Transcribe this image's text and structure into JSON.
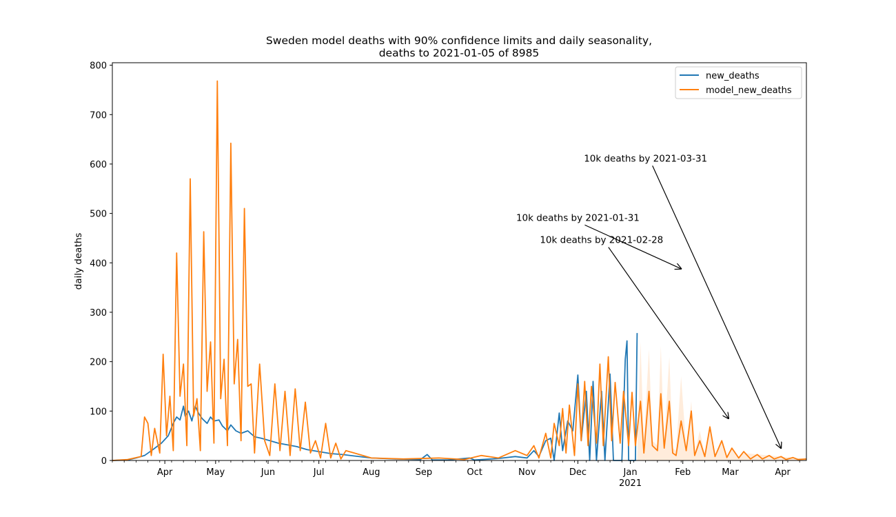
{
  "chart_data": {
    "type": "line",
    "title": "Sweden model deaths with 90% confidence limits and daily seasonality,",
    "subtitle": "deaths to 2021-01-05 of 8985",
    "xlabel": "",
    "ylabel": "daily deaths",
    "x_range": [
      "2020-03-01",
      "2021-04-15"
    ],
    "ylim": [
      0,
      805
    ],
    "yticks": [
      0,
      100,
      200,
      300,
      400,
      500,
      600,
      700,
      800
    ],
    "xticks": [
      {
        "date": "2020-04-01",
        "label": "Apr"
      },
      {
        "date": "2020-05-01",
        "label": "May"
      },
      {
        "date": "2020-06-01",
        "label": "Jun"
      },
      {
        "date": "2020-07-01",
        "label": "Jul"
      },
      {
        "date": "2020-08-01",
        "label": "Aug"
      },
      {
        "date": "2020-09-01",
        "label": "Sep"
      },
      {
        "date": "2020-10-01",
        "label": "Oct"
      },
      {
        "date": "2020-11-01",
        "label": "Nov"
      },
      {
        "date": "2020-12-01",
        "label": "Dec"
      },
      {
        "date": "2021-01-01",
        "label": "Jan"
      },
      {
        "date": "2021-02-01",
        "label": "Feb"
      },
      {
        "date": "2021-03-01",
        "label": "Mar"
      },
      {
        "date": "2021-04-01",
        "label": "Apr"
      }
    ],
    "year_label": {
      "date": "2021-01-01",
      "label": "2021"
    },
    "grid": false,
    "legend_position": "top-right",
    "series": [
      {
        "name": "new_deaths",
        "color": "#1f77b4",
        "points": [
          [
            "2020-03-01",
            0
          ],
          [
            "2020-03-10",
            1
          ],
          [
            "2020-03-15",
            5
          ],
          [
            "2020-03-20",
            10
          ],
          [
            "2020-03-25",
            22
          ],
          [
            "2020-03-30",
            35
          ],
          [
            "2020-04-03",
            50
          ],
          [
            "2020-04-06",
            75
          ],
          [
            "2020-04-08",
            88
          ],
          [
            "2020-04-10",
            82
          ],
          [
            "2020-04-12",
            110
          ],
          [
            "2020-04-13",
            90
          ],
          [
            "2020-04-15",
            100
          ],
          [
            "2020-04-17",
            80
          ],
          [
            "2020-04-19",
            110
          ],
          [
            "2020-04-21",
            95
          ],
          [
            "2020-04-23",
            85
          ],
          [
            "2020-04-26",
            75
          ],
          [
            "2020-04-28",
            88
          ],
          [
            "2020-04-30",
            80
          ],
          [
            "2020-05-03",
            82
          ],
          [
            "2020-05-05",
            70
          ],
          [
            "2020-05-08",
            60
          ],
          [
            "2020-05-10",
            72
          ],
          [
            "2020-05-13",
            60
          ],
          [
            "2020-05-16",
            55
          ],
          [
            "2020-05-20",
            60
          ],
          [
            "2020-05-24",
            48
          ],
          [
            "2020-05-28",
            45
          ],
          [
            "2020-06-02",
            40
          ],
          [
            "2020-06-07",
            35
          ],
          [
            "2020-06-12",
            32
          ],
          [
            "2020-06-18",
            28
          ],
          [
            "2020-06-24",
            22
          ],
          [
            "2020-07-01",
            18
          ],
          [
            "2020-07-08",
            14
          ],
          [
            "2020-07-15",
            12
          ],
          [
            "2020-07-22",
            9
          ],
          [
            "2020-08-01",
            5
          ],
          [
            "2020-08-15",
            3
          ],
          [
            "2020-08-30",
            2
          ],
          [
            "2020-09-03",
            12
          ],
          [
            "2020-09-06",
            1
          ],
          [
            "2020-09-15",
            1
          ],
          [
            "2020-09-28",
            5
          ],
          [
            "2020-10-01",
            1
          ],
          [
            "2020-10-15",
            4
          ],
          [
            "2020-10-25",
            8
          ],
          [
            "2020-11-01",
            5
          ],
          [
            "2020-11-05",
            20
          ],
          [
            "2020-11-08",
            8
          ],
          [
            "2020-11-12",
            40
          ],
          [
            "2020-11-15",
            45
          ],
          [
            "2020-11-17",
            0
          ],
          [
            "2020-11-20",
            96
          ],
          [
            "2020-11-22",
            20
          ],
          [
            "2020-11-25",
            80
          ],
          [
            "2020-11-28",
            60
          ],
          [
            "2020-12-01",
            173
          ],
          [
            "2020-12-03",
            40
          ],
          [
            "2020-12-06",
            140
          ],
          [
            "2020-12-08",
            0
          ],
          [
            "2020-12-10",
            160
          ],
          [
            "2020-12-12",
            0
          ],
          [
            "2020-12-15",
            140
          ],
          [
            "2020-12-17",
            0
          ],
          [
            "2020-12-20",
            175
          ],
          [
            "2020-12-22",
            0
          ],
          [
            "2020-12-24",
            0
          ],
          [
            "2020-12-27",
            0
          ],
          [
            "2020-12-29",
            205
          ],
          [
            "2020-12-30",
            242
          ],
          [
            "2020-12-31",
            0
          ],
          [
            "2021-01-02",
            0
          ],
          [
            "2021-01-04",
            0
          ],
          [
            "2021-01-05",
            258
          ]
        ]
      },
      {
        "name": "model_new_deaths",
        "color": "#ff7f0e",
        "points": [
          [
            "2020-03-01",
            0
          ],
          [
            "2020-03-10",
            2
          ],
          [
            "2020-03-18",
            8
          ],
          [
            "2020-03-20",
            88
          ],
          [
            "2020-03-22",
            75
          ],
          [
            "2020-03-24",
            10
          ],
          [
            "2020-03-26",
            65
          ],
          [
            "2020-03-29",
            15
          ],
          [
            "2020-03-31",
            215
          ],
          [
            "2020-04-02",
            50
          ],
          [
            "2020-04-04",
            130
          ],
          [
            "2020-04-06",
            20
          ],
          [
            "2020-04-08",
            420
          ],
          [
            "2020-04-10",
            130
          ],
          [
            "2020-04-12",
            195
          ],
          [
            "2020-04-14",
            30
          ],
          [
            "2020-04-16",
            570
          ],
          [
            "2020-04-18",
            90
          ],
          [
            "2020-04-20",
            125
          ],
          [
            "2020-04-22",
            20
          ],
          [
            "2020-04-24",
            463
          ],
          [
            "2020-04-26",
            140
          ],
          [
            "2020-04-28",
            240
          ],
          [
            "2020-04-30",
            35
          ],
          [
            "2020-05-02",
            768
          ],
          [
            "2020-05-04",
            125
          ],
          [
            "2020-05-06",
            205
          ],
          [
            "2020-05-08",
            30
          ],
          [
            "2020-05-10",
            642
          ],
          [
            "2020-05-12",
            155
          ],
          [
            "2020-05-14",
            245
          ],
          [
            "2020-05-16",
            40
          ],
          [
            "2020-05-18",
            510
          ],
          [
            "2020-05-20",
            150
          ],
          [
            "2020-05-22",
            155
          ],
          [
            "2020-05-24",
            15
          ],
          [
            "2020-05-27",
            195
          ],
          [
            "2020-05-30",
            40
          ],
          [
            "2020-06-02",
            10
          ],
          [
            "2020-06-05",
            155
          ],
          [
            "2020-06-08",
            20
          ],
          [
            "2020-06-11",
            140
          ],
          [
            "2020-06-14",
            10
          ],
          [
            "2020-06-17",
            145
          ],
          [
            "2020-06-20",
            20
          ],
          [
            "2020-06-23",
            118
          ],
          [
            "2020-06-26",
            15
          ],
          [
            "2020-06-29",
            40
          ],
          [
            "2020-07-02",
            5
          ],
          [
            "2020-07-05",
            75
          ],
          [
            "2020-07-08",
            5
          ],
          [
            "2020-07-11",
            35
          ],
          [
            "2020-07-14",
            3
          ],
          [
            "2020-07-17",
            20
          ],
          [
            "2020-08-01",
            5
          ],
          [
            "2020-08-20",
            3
          ],
          [
            "2020-09-10",
            5
          ],
          [
            "2020-09-25",
            2
          ],
          [
            "2020-10-05",
            10
          ],
          [
            "2020-10-15",
            5
          ],
          [
            "2020-10-25",
            20
          ],
          [
            "2020-11-01",
            10
          ],
          [
            "2020-11-05",
            30
          ],
          [
            "2020-11-08",
            5
          ],
          [
            "2020-11-12",
            55
          ],
          [
            "2020-11-15",
            5
          ],
          [
            "2020-11-17",
            75
          ],
          [
            "2020-11-20",
            30
          ],
          [
            "2020-11-22",
            105
          ],
          [
            "2020-11-24",
            15
          ],
          [
            "2020-11-26",
            112
          ],
          [
            "2020-11-29",
            10
          ],
          [
            "2020-12-01",
            155
          ],
          [
            "2020-12-03",
            40
          ],
          [
            "2020-12-05",
            160
          ],
          [
            "2020-12-07",
            30
          ],
          [
            "2020-12-09",
            150
          ],
          [
            "2020-12-12",
            35
          ],
          [
            "2020-12-14",
            195
          ],
          [
            "2020-12-16",
            30
          ],
          [
            "2020-12-19",
            210
          ],
          [
            "2020-12-21",
            40
          ],
          [
            "2020-12-23",
            158
          ],
          [
            "2020-12-26",
            35
          ],
          [
            "2020-12-28",
            140
          ],
          [
            "2020-12-31",
            30
          ],
          [
            "2021-01-02",
            138
          ],
          [
            "2021-01-04",
            30
          ],
          [
            "2021-01-07",
            120
          ],
          [
            "2021-01-09",
            15
          ],
          [
            "2021-01-12",
            140
          ],
          [
            "2021-01-14",
            30
          ],
          [
            "2021-01-17",
            20
          ],
          [
            "2021-01-19",
            135
          ],
          [
            "2021-01-21",
            25
          ],
          [
            "2021-01-24",
            120
          ],
          [
            "2021-01-26",
            15
          ],
          [
            "2021-01-28",
            10
          ],
          [
            "2021-01-31",
            80
          ],
          [
            "2021-02-03",
            20
          ],
          [
            "2021-02-06",
            100
          ],
          [
            "2021-02-08",
            10
          ],
          [
            "2021-02-11",
            40
          ],
          [
            "2021-02-14",
            8
          ],
          [
            "2021-02-17",
            68
          ],
          [
            "2021-02-20",
            8
          ],
          [
            "2021-02-24",
            40
          ],
          [
            "2021-02-27",
            6
          ],
          [
            "2021-03-02",
            25
          ],
          [
            "2021-03-06",
            5
          ],
          [
            "2021-03-09",
            18
          ],
          [
            "2021-03-13",
            3
          ],
          [
            "2021-03-17",
            12
          ],
          [
            "2021-03-20",
            3
          ],
          [
            "2021-03-24",
            10
          ],
          [
            "2021-03-27",
            3
          ],
          [
            "2021-03-31",
            8
          ],
          [
            "2021-04-03",
            2
          ],
          [
            "2021-04-07",
            6
          ],
          [
            "2021-04-10",
            2
          ],
          [
            "2021-04-15",
            3
          ]
        ]
      }
    ],
    "confidence_band": {
      "color": "#ff7f0e",
      "opacity": 0.15,
      "upper": [
        [
          "2021-01-05",
          5
        ],
        [
          "2021-01-07",
          240
        ],
        [
          "2021-01-09",
          40
        ],
        [
          "2021-01-12",
          225
        ],
        [
          "2021-01-14",
          40
        ],
        [
          "2021-01-17",
          30
        ],
        [
          "2021-01-19",
          232
        ],
        [
          "2021-01-21",
          35
        ],
        [
          "2021-01-24",
          210
        ],
        [
          "2021-01-26",
          25
        ],
        [
          "2021-01-28",
          20
        ],
        [
          "2021-01-31",
          170
        ],
        [
          "2021-02-03",
          25
        ],
        [
          "2021-02-06",
          120
        ],
        [
          "2021-02-08",
          15
        ],
        [
          "2021-02-11",
          60
        ],
        [
          "2021-02-14",
          12
        ],
        [
          "2021-02-17",
          75
        ],
        [
          "2021-02-20",
          10
        ],
        [
          "2021-02-24",
          40
        ],
        [
          "2021-02-27",
          8
        ],
        [
          "2021-03-02",
          25
        ],
        [
          "2021-03-06",
          6
        ],
        [
          "2021-03-09",
          15
        ],
        [
          "2021-04-15",
          3
        ]
      ],
      "lower": [
        [
          "2021-01-05",
          0
        ],
        [
          "2021-04-15",
          0
        ]
      ]
    },
    "annotations": [
      {
        "text": "10k deaths by 2021-03-31",
        "text_x": "2021-01-10",
        "text_y": 605,
        "arrow_to_x": "2021-03-31",
        "arrow_to_y": 25
      },
      {
        "text": "10k deaths by 2021-01-31",
        "text_x": "2020-12-01",
        "text_y": 485,
        "arrow_to_x": "2021-01-31",
        "arrow_to_y": 388
      },
      {
        "text": "10k deaths by 2021-02-28",
        "text_x": "2020-12-15",
        "text_y": 440,
        "arrow_to_x": "2021-02-28",
        "arrow_to_y": 85
      }
    ]
  }
}
